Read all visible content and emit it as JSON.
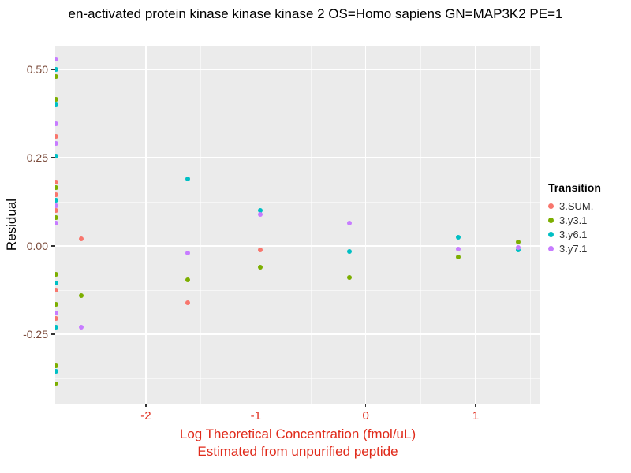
{
  "chart_data": {
    "type": "scatter",
    "title": "en-activated protein kinase kinase kinase 2 OS=Homo sapiens GN=MAP3K2 PE=1",
    "ylabel": "Residual",
    "xlabel_line1": "Log Theoretical Concentration (fmol/uL)",
    "xlabel_line2": "Estimated from unpurified peptide",
    "xlim": [
      -2.825,
      1.588
    ],
    "ylim": [
      -0.446,
      0.567
    ],
    "x_ticks": [
      -2,
      -1,
      0,
      1
    ],
    "x_tick_labels": [
      "-2",
      "-1",
      "0",
      "1"
    ],
    "y_ticks": [
      -0.25,
      0,
      0.25,
      0.5
    ],
    "y_tick_labels": [
      "-0.25",
      "0.00",
      "0.25",
      "0.50"
    ],
    "x_minor_ticks": [
      -2.5,
      -1.5,
      -0.5,
      0.5,
      1.5
    ],
    "y_minor_ticks": [
      -0.375,
      -0.125,
      0.125,
      0.375
    ],
    "legend_title": "Transition",
    "legend_position": "right",
    "panel_bg": "#EBEBEB",
    "grid_color": "#FFFFFF",
    "series": [
      {
        "name": "3.SUM.",
        "color": "#F8766D",
        "points": [
          [
            -2.82,
            0.31
          ],
          [
            -2.82,
            0.18
          ],
          [
            -2.82,
            0.145
          ],
          [
            -2.82,
            0.1
          ],
          [
            -2.82,
            -0.125
          ],
          [
            -2.82,
            -0.205
          ],
          [
            -2.59,
            0.02
          ],
          [
            -1.62,
            -0.16
          ],
          [
            -0.96,
            -0.01
          ]
        ]
      },
      {
        "name": "3.y3.1",
        "color": "#7CAE00",
        "points": [
          [
            -2.82,
            0.48
          ],
          [
            -2.82,
            0.415
          ],
          [
            -2.82,
            0.165
          ],
          [
            -2.82,
            0.08
          ],
          [
            -2.82,
            -0.08
          ],
          [
            -2.82,
            -0.165
          ],
          [
            -2.82,
            -0.34
          ],
          [
            -2.82,
            -0.39
          ],
          [
            -2.59,
            -0.14
          ],
          [
            -1.62,
            -0.095
          ],
          [
            -0.96,
            -0.06
          ],
          [
            -0.15,
            -0.09
          ],
          [
            0.84,
            -0.03
          ],
          [
            1.39,
            0.012
          ]
        ]
      },
      {
        "name": "3.y6.1",
        "color": "#00BFC4",
        "points": [
          [
            -2.82,
            0.5
          ],
          [
            -2.82,
            0.4
          ],
          [
            -2.82,
            0.255
          ],
          [
            -2.82,
            0.13
          ],
          [
            -2.82,
            -0.105
          ],
          [
            -2.82,
            -0.23
          ],
          [
            -2.82,
            -0.355
          ],
          [
            -1.62,
            0.19
          ],
          [
            -0.96,
            0.1
          ],
          [
            -0.15,
            -0.015
          ],
          [
            0.84,
            0.025
          ],
          [
            1.39,
            -0.012
          ]
        ]
      },
      {
        "name": "3.y7.1",
        "color": "#C77CFF",
        "points": [
          [
            -2.82,
            0.53
          ],
          [
            -2.82,
            0.345
          ],
          [
            -2.82,
            0.29
          ],
          [
            -2.82,
            0.115
          ],
          [
            -2.82,
            0.065
          ],
          [
            -2.82,
            -0.19
          ],
          [
            -2.59,
            -0.23
          ],
          [
            -1.62,
            -0.02
          ],
          [
            -0.96,
            0.09
          ],
          [
            -0.15,
            0.065
          ],
          [
            0.84,
            -0.008
          ],
          [
            1.39,
            -0.005
          ]
        ]
      }
    ]
  },
  "style": {
    "x_tick_color": "#E02A1A",
    "x_title_color": "#E02A1A",
    "y_tick_color": "#7A4A3A",
    "tick_mark_color": "#333333",
    "legend_label_color": "#333333"
  }
}
